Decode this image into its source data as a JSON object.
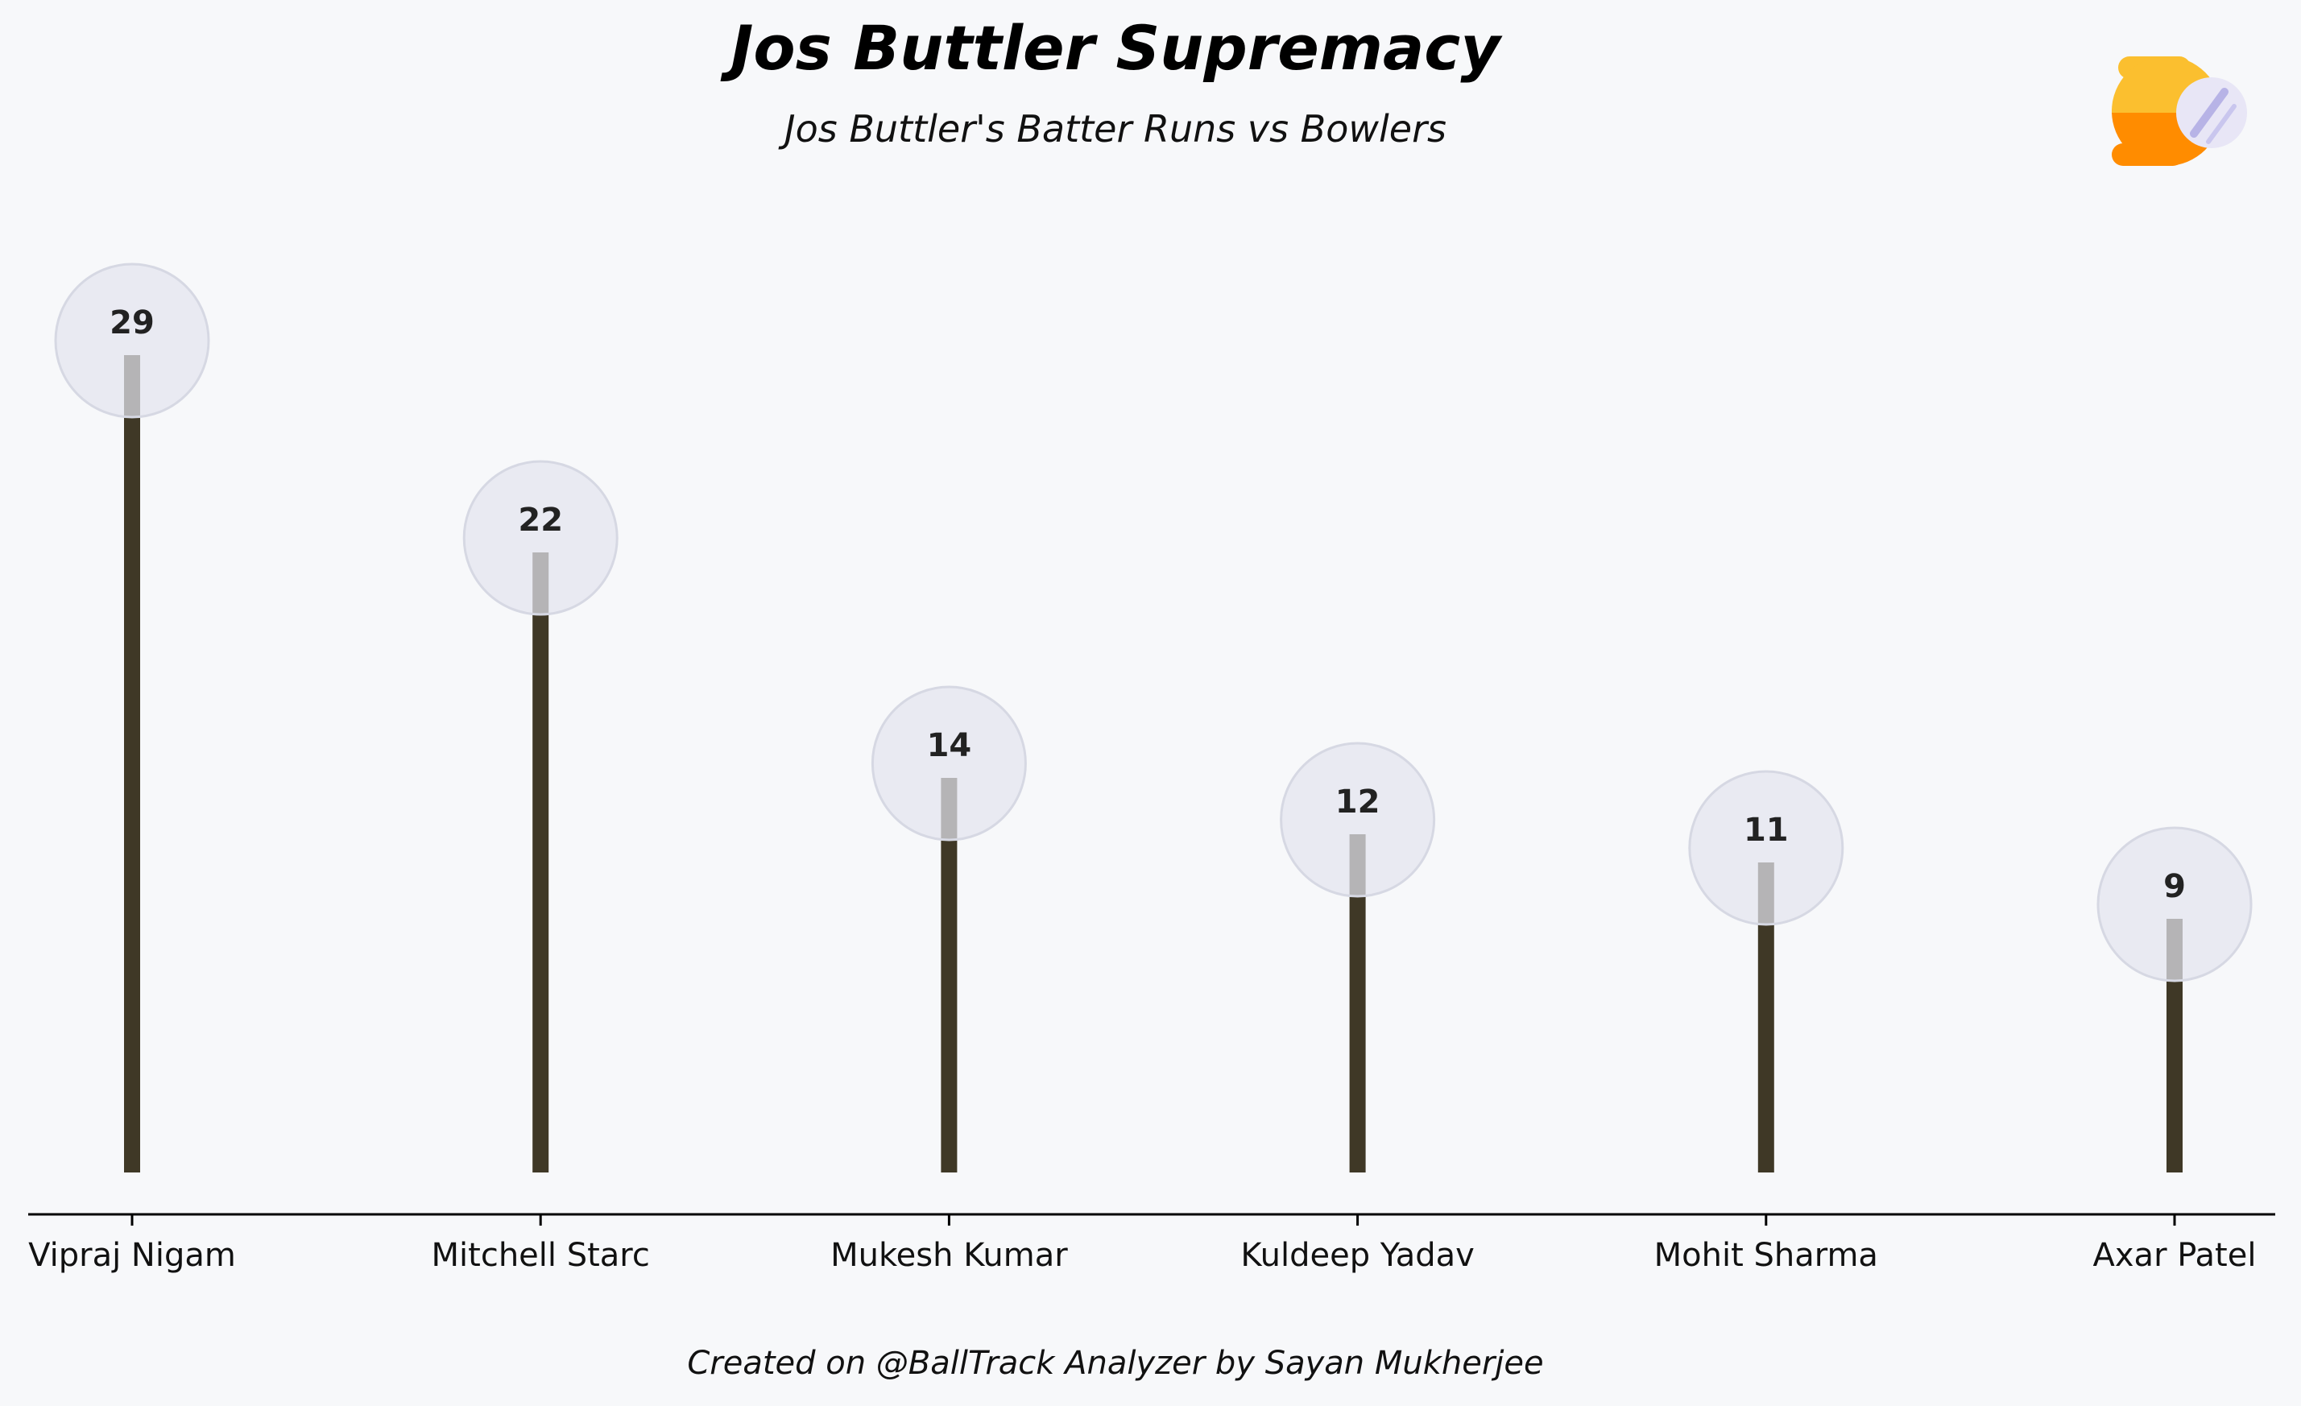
{
  "chart_data": {
    "type": "lollipop",
    "title": "Jos Buttler Supremacy",
    "subtitle": "Jos Buttler's Batter Runs vs Bowlers",
    "categories": [
      "Vipraj Nigam",
      "Mitchell Starc",
      "Mukesh Kumar",
      "Kuldeep Yadav",
      "Mohit Sharma",
      "Axar Patel"
    ],
    "values": [
      29,
      22,
      14,
      12,
      11,
      9
    ],
    "data_labels": [
      "29",
      "22",
      "14",
      "12",
      "11",
      "9"
    ],
    "xlabel": "",
    "ylabel": "",
    "ylim": [
      0,
      32
    ],
    "grid": false,
    "legend": "none",
    "footer": "Created on @BallTrack Analyzer by Sayan Mukherjee",
    "colors": {
      "background": "#f7f8fa",
      "stem": "#3f3826",
      "marker_fill": "#e3e5ef",
      "marker_stroke": "#d6d8e3",
      "axis": "#000000",
      "logo_top": "#fbbf2f",
      "logo_bottom": "#ff8c00",
      "logo_lens": "#e8e6f6"
    }
  },
  "logo": {
    "icon": "ball-track-logo-icon"
  }
}
